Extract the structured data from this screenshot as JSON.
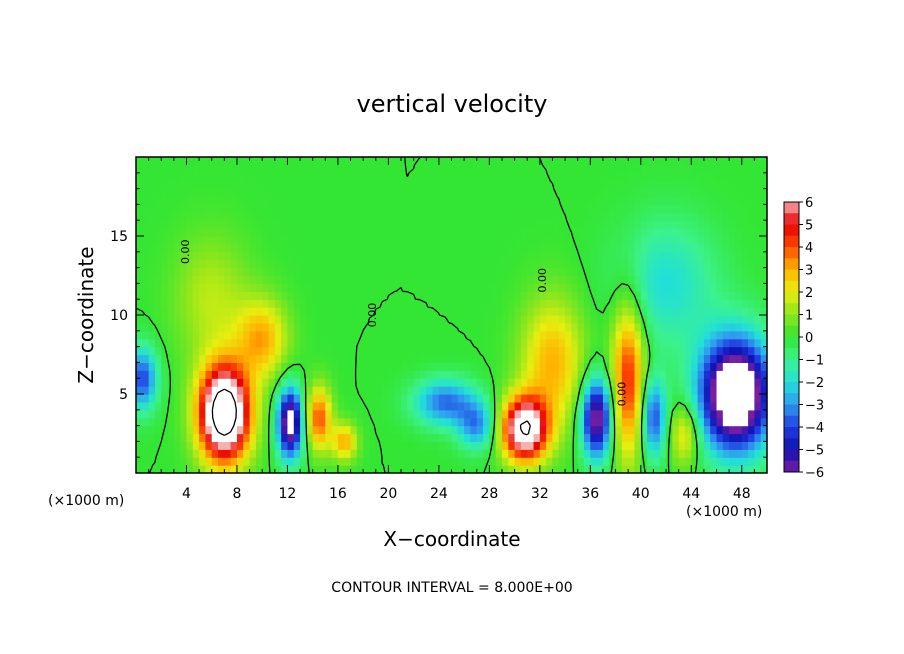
{
  "chart_data": {
    "type": "heatmap",
    "title": "vertical velocity",
    "xlabel": "X−coordinate",
    "ylabel": "Z−coordinate",
    "x_unit": "(×1000 m)",
    "x_unit_right": "(×1000 m)",
    "note": "CONTOUR INTERVAL = 8.000E+00",
    "xlim": [
      0,
      50
    ],
    "ylim": [
      0,
      20
    ],
    "x_ticks": [
      4,
      8,
      12,
      16,
      20,
      24,
      28,
      32,
      36,
      40,
      44,
      48
    ],
    "x_tick_labels": [
      "4",
      "8",
      "12",
      "16",
      "20",
      "24",
      "28",
      "32",
      "36",
      "40",
      "44",
      "48"
    ],
    "y_ticks": [
      5,
      10,
      15
    ],
    "y_tick_labels": [
      "5",
      "10",
      "15"
    ],
    "colorbar": {
      "min": -6,
      "max": 6,
      "ticks": [
        6,
        5,
        4,
        3,
        2,
        1,
        0,
        -1,
        -2,
        -3,
        -4,
        -5,
        -6
      ],
      "tick_labels": [
        "6",
        "5",
        "4",
        "3",
        "2",
        "1",
        "0",
        "−1",
        "−2",
        "−3",
        "−4",
        "−5",
        "−6"
      ],
      "stops": [
        {
          "v": -6,
          "c": "#7a1fa2"
        },
        {
          "v": -5,
          "c": "#1010b0"
        },
        {
          "v": -4,
          "c": "#1f3fe0"
        },
        {
          "v": -3,
          "c": "#2f9bf0"
        },
        {
          "v": -2,
          "c": "#22e0d8"
        },
        {
          "v": -1,
          "c": "#3cf28c"
        },
        {
          "v": 0,
          "c": "#33e633"
        },
        {
          "v": 1,
          "c": "#8fe61c"
        },
        {
          "v": 2,
          "c": "#e8ee10"
        },
        {
          "v": 3,
          "c": "#ffb400"
        },
        {
          "v": 4,
          "c": "#ff4a00"
        },
        {
          "v": 5,
          "c": "#e80000"
        },
        {
          "v": 6,
          "c": "#f6b0b0"
        }
      ]
    },
    "features": [
      {
        "x": 7.0,
        "z": 3.8,
        "amp": 10.0,
        "sx": 2.0,
        "sz": 3.0
      },
      {
        "x": 10.0,
        "z": 8.5,
        "amp": 3.0,
        "sx": 2.0,
        "sz": 2.5
      },
      {
        "x": 12.2,
        "z": 3.2,
        "amp": -7.0,
        "sx": 1.0,
        "sz": 2.2
      },
      {
        "x": 14.5,
        "z": 3.5,
        "amp": 4.0,
        "sx": 1.0,
        "sz": 2.0
      },
      {
        "x": 16.5,
        "z": 2.0,
        "amp": 3.0,
        "sx": 1.0,
        "sz": 1.2
      },
      {
        "x": 24.5,
        "z": 4.5,
        "amp": -3.5,
        "sx": 2.5,
        "sz": 1.5
      },
      {
        "x": 27.0,
        "z": 3.0,
        "amp": -3.0,
        "sx": 1.5,
        "sz": 1.5
      },
      {
        "x": 30.8,
        "z": 2.8,
        "amp": 8.0,
        "sx": 1.8,
        "sz": 2.0
      },
      {
        "x": 33.0,
        "z": 7.0,
        "amp": 3.0,
        "sx": 2.5,
        "sz": 4.0
      },
      {
        "x": 36.5,
        "z": 3.5,
        "amp": -6.5,
        "sx": 1.2,
        "sz": 2.5
      },
      {
        "x": 39.0,
        "z": 6.0,
        "amp": 4.5,
        "sx": 1.3,
        "sz": 5.0
      },
      {
        "x": 41.0,
        "z": 3.5,
        "amp": -4.0,
        "sx": 1.0,
        "sz": 2.5
      },
      {
        "x": 43.5,
        "z": 2.5,
        "amp": 2.5,
        "sx": 1.2,
        "sz": 2.0
      },
      {
        "x": 47.5,
        "z": 5.0,
        "amp": -9.0,
        "sx": 2.8,
        "sz": 3.5
      },
      {
        "x": 42.0,
        "z": 12.0,
        "amp": -2.0,
        "sx": 4.0,
        "sz": 4.0
      },
      {
        "x": 0.5,
        "z": 6.0,
        "amp": -4.0,
        "sx": 1.2,
        "sz": 2.0
      },
      {
        "x": 6.0,
        "z": 11.0,
        "amp": 1.5,
        "sx": 3.0,
        "sz": 4.0
      }
    ],
    "contour_labels": [
      {
        "text": "0.00",
        "x": 4.2,
        "z": 14.0,
        "rotate": -90
      },
      {
        "text": "0.00",
        "x": 19.0,
        "z": 10.0,
        "rotate": -90
      },
      {
        "text": "0.00",
        "x": 32.5,
        "z": 12.2,
        "rotate": -90
      },
      {
        "text": "0.00",
        "x": 38.8,
        "z": 5.0,
        "rotate": -90
      }
    ]
  }
}
